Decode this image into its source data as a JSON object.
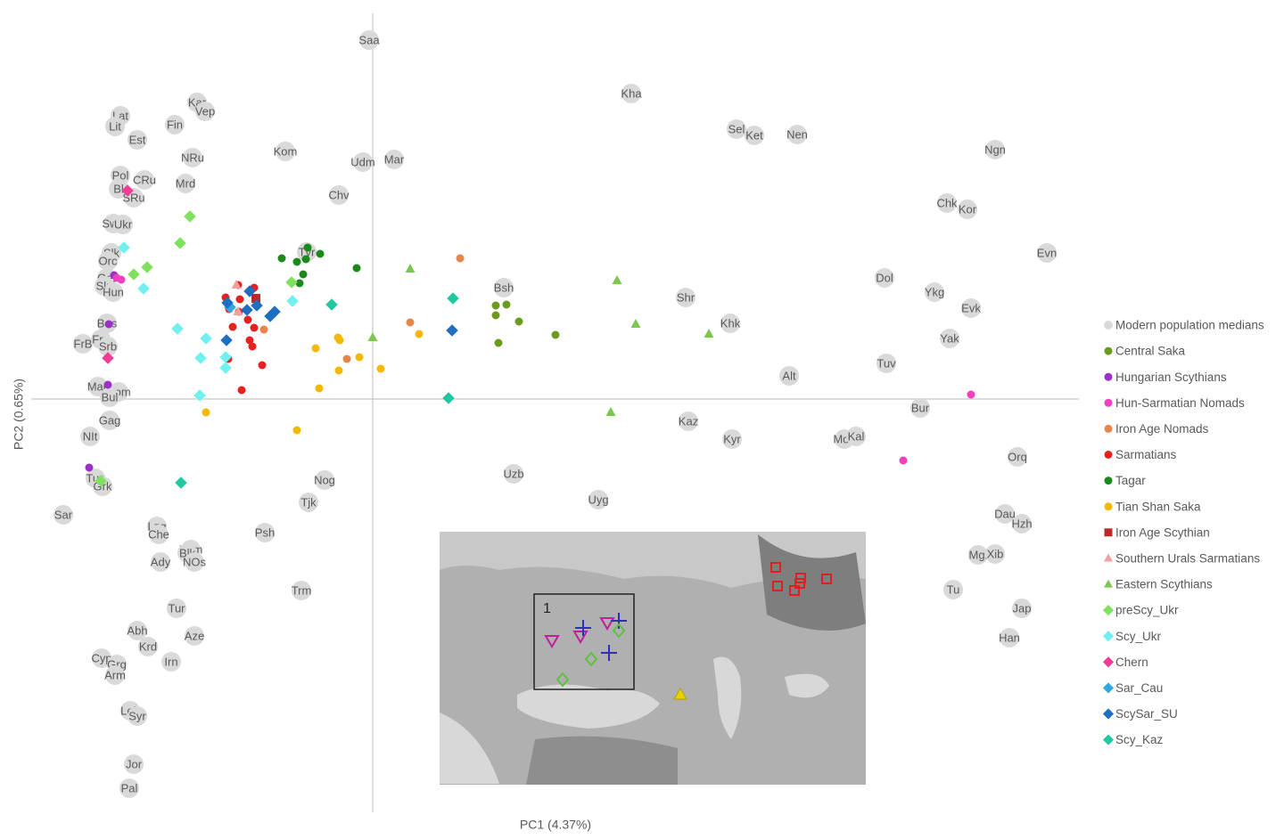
{
  "chart_data": {
    "type": "scatter",
    "x_label": "PC1 (4.37%)",
    "y_label": "PC2 (0.65%)",
    "xlim": [
      -38.3,
      79.2
    ],
    "ylim": [
      -46.4,
      43.3
    ],
    "legend": "right",
    "inset_annotation": "1",
    "series": [
      {
        "name": "Modern population medians",
        "color": "#d9d9d9",
        "marker": "circle",
        "labels": [
          "Saa",
          "Kha",
          "Kar",
          "Vep",
          "Lat",
          "Lit",
          "Fin",
          "Est",
          "Sel",
          "Ket",
          "Nen",
          "Ngn",
          "NRu",
          "Kom",
          "Udm",
          "Mar",
          "Pol",
          "CRu",
          "Bl",
          "SRu",
          "Mrd",
          "Chv",
          "Chk",
          "Kor",
          "Swe",
          "Ukr",
          "Evn",
          "Slk",
          "Orc",
          "Tvr",
          "Ger",
          "Sln",
          "Hun",
          "Bsh",
          "Dol",
          "Ykg",
          "Shr",
          "Evk",
          "Bos",
          "Khk",
          "Fre",
          "FrB",
          "Srb",
          "Yak",
          "Tuv",
          "Alt",
          "Mac",
          "Rom",
          "Bul",
          "Bur",
          "Gag",
          "Kaz",
          "Kyr",
          "NIt",
          "Mon",
          "Kal",
          "Orq",
          "Tus",
          "Grk",
          "Uzb",
          "Nog",
          "Uyg",
          "Tjk",
          "Sar",
          "Dau",
          "Hzh",
          "Lzg",
          "Che",
          "Psh",
          "Kum",
          "Blk",
          "NOs",
          "Ady",
          "Mgl",
          "Xib",
          "Trm",
          "Tu",
          "Tur",
          "Jap",
          "Abh",
          "Aze",
          "Krd",
          "Han",
          "Cyp",
          "Grg",
          "Arm",
          "Irn",
          "Leb",
          "Syr",
          "Jor",
          "Pal"
        ],
        "x": [
          -0.4,
          29.0,
          -19.7,
          -18.8,
          -28.3,
          -28.9,
          -22.2,
          -26.4,
          40.8,
          42.8,
          47.6,
          69.8,
          -20.2,
          -9.8,
          -1.1,
          2.4,
          -28.3,
          -25.6,
          -28.5,
          -26.8,
          -21.0,
          -3.8,
          64.4,
          66.7,
          -29.1,
          -28.0,
          75.6,
          -29.3,
          -29.7,
          -7.4,
          -29.8,
          -30.1,
          -29.1,
          14.7,
          57.4,
          63.0,
          35.1,
          67.1,
          -29.8,
          40.1,
          -30.5,
          -32.5,
          -29.7,
          64.7,
          57.6,
          46.7,
          -30.8,
          -28.5,
          -29.5,
          61.4,
          -29.5,
          35.4,
          40.3,
          -31.7,
          52.9,
          54.2,
          72.3,
          -31.1,
          -30.3,
          15.8,
          -5.4,
          25.3,
          -7.2,
          -34.7,
          70.9,
          72.8,
          -24.2,
          -24.0,
          -12.1,
          -20.4,
          -20.8,
          -20.0,
          -23.8,
          67.9,
          69.8,
          -8.0,
          65.1,
          -22.0,
          72.8,
          -26.4,
          -20.0,
          -25.2,
          71.4,
          -30.4,
          -28.7,
          -28.9,
          -22.6,
          -27.2,
          -26.4,
          -26.8,
          -27.3
        ],
        "values": [
          40.3,
          34.3,
          33.3,
          32.3,
          31.8,
          30.6,
          30.8,
          29.1,
          30.3,
          29.6,
          29.7,
          28.0,
          27.1,
          27.8,
          26.6,
          26.9,
          25.1,
          24.6,
          23.6,
          22.6,
          24.2,
          22.9,
          22.0,
          21.3,
          19.7,
          19.6,
          16.4,
          16.4,
          15.5,
          16.5,
          13.6,
          12.7,
          12.0,
          12.5,
          13.6,
          12.0,
          11.4,
          10.2,
          8.5,
          8.5,
          6.7,
          6.2,
          5.9,
          6.8,
          4.0,
          2.6,
          1.4,
          0.8,
          0.2,
          -1.0,
          -2.4,
          -2.5,
          -4.5,
          -4.2,
          -4.5,
          -4.2,
          -6.5,
          -8.9,
          -9.8,
          -8.4,
          -9.1,
          -11.3,
          -11.6,
          -13.0,
          -12.9,
          -14.0,
          -14.3,
          -15.2,
          -15.0,
          -16.9,
          -17.3,
          -18.3,
          -18.3,
          -17.5,
          -17.4,
          -21.5,
          -21.4,
          -23.5,
          -23.5,
          -26.0,
          -26.6,
          -27.8,
          -26.8,
          -29.1,
          -29.8,
          -31.0,
          -29.5,
          -35.0,
          -35.6,
          -41.0,
          -43.7
        ]
      },
      {
        "name": "Central Saka",
        "color": "#6a9a1e",
        "marker": "circle",
        "x": [
          13.8,
          15.0,
          13.8,
          16.4,
          14.1,
          20.5
        ],
        "values": [
          10.5,
          10.6,
          9.4,
          8.7,
          6.3,
          7.2
        ]
      },
      {
        "name": "Hungarian Scythians",
        "color": "#9b30c8",
        "marker": "circle",
        "x": [
          -29.0,
          -29.6,
          -29.7,
          -31.8
        ],
        "values": [
          13.9,
          8.4,
          1.6,
          -7.7
        ]
      },
      {
        "name": "Hun-Sarmatian Nomads",
        "color": "#f040c0",
        "marker": "circle",
        "x": [
          67.1,
          59.5,
          -28.7,
          -28.2
        ],
        "values": [
          0.5,
          -6.9,
          13.6,
          13.4
        ]
      },
      {
        "name": "Iron Age Nomads",
        "color": "#e8844a",
        "marker": "circle",
        "x": [
          9.8,
          4.2,
          -12.2,
          -2.9
        ],
        "values": [
          15.8,
          8.6,
          7.8,
          4.5
        ]
      },
      {
        "name": "Sarmatians",
        "color": "#e82020",
        "marker": "circle",
        "x": [
          -15.1,
          -13.3,
          -16.5,
          -14.9,
          -16.1,
          -15.0,
          -14.0,
          -15.7,
          -13.3,
          -13.8,
          -13.5,
          -16.2,
          -12.4,
          -14.7
        ],
        "values": [
          12.8,
          12.5,
          11.4,
          11.2,
          10.1,
          9.8,
          8.9,
          8.1,
          8.0,
          6.6,
          5.9,
          4.5,
          3.8,
          1.0
        ]
      },
      {
        "name": "Tagar",
        "color": "#1a8a1a",
        "marker": "circle",
        "x": [
          -10.2,
          -8.5,
          -7.3,
          -7.5,
          -5.9,
          -7.8,
          -8.2,
          -1.8
        ],
        "values": [
          15.8,
          15.4,
          17.0,
          15.7,
          16.3,
          14.0,
          13.0,
          14.7
        ]
      },
      {
        "name": "Tian Shan Saka",
        "color": "#f5b800",
        "marker": "circle",
        "x": [
          -3.9,
          -3.7,
          -6.4,
          0.9,
          -3.8,
          -6.0,
          -18.7,
          -8.5,
          5.2,
          -1.5
        ],
        "values": [
          6.9,
          6.6,
          5.7,
          3.4,
          3.2,
          1.2,
          -1.5,
          -3.5,
          7.3,
          4.7
        ]
      },
      {
        "name": "Iron Age Scythian",
        "color": "#c02828",
        "marker": "square",
        "x": [
          -13.1
        ],
        "values": [
          11.3
        ]
      },
      {
        "name": "Southern Urals Sarmatians",
        "color": "#f0a0a0",
        "marker": "triangle",
        "x": [
          -15.3,
          -15.1
        ],
        "values": [
          12.8,
          9.8
        ]
      },
      {
        "name": "Eastern Scythians",
        "color": "#7ac850",
        "marker": "triangle",
        "x": [
          4.2,
          27.4,
          29.5,
          37.7,
          0.0,
          26.7
        ],
        "values": [
          14.6,
          13.3,
          8.4,
          7.3,
          6.9,
          -1.5
        ]
      },
      {
        "name": "preScy_Ukr",
        "color": "#80e060",
        "marker": "diamond",
        "x": [
          -20.5,
          -21.6,
          -25.3,
          -26.8,
          -9.1,
          -30.5
        ],
        "values": [
          20.5,
          17.5,
          14.8,
          14.0,
          13.1,
          -9.2
        ]
      },
      {
        "name": "Scy_Ukr",
        "color": "#70f0f0",
        "marker": "diamond",
        "x": [
          -27.9,
          -25.7,
          -21.9,
          -18.7,
          -19.3,
          -16.5,
          -16.5,
          -19.4,
          -9.0
        ],
        "values": [
          17.0,
          12.4,
          7.9,
          6.8,
          4.6,
          4.7,
          3.5,
          0.4,
          11.0
        ]
      },
      {
        "name": "Chern",
        "color": "#f03c96",
        "marker": "diamond",
        "x": [
          -27.5,
          -29.7
        ],
        "values": [
          23.4,
          4.6
        ]
      },
      {
        "name": "Sar_Cau",
        "color": "#30a8e0",
        "marker": "diamond",
        "x": [
          -16.0
        ],
        "values": [
          10.3
        ]
      },
      {
        "name": "ScySar_SU",
        "color": "#1f6fc0",
        "marker": "diamond",
        "x": [
          -13.8,
          -16.3,
          -13.0,
          -14.1,
          -11.5,
          -11.0,
          -16.4,
          8.9
        ],
        "values": [
          12.1,
          10.8,
          10.5,
          10.0,
          9.3,
          9.8,
          6.6,
          7.7
        ]
      },
      {
        "name": "Scy_Kaz",
        "color": "#20c8a0",
        "marker": "diamond",
        "x": [
          -4.6,
          9.0,
          8.5,
          -21.5
        ],
        "values": [
          10.6,
          11.3,
          0.1,
          -9.4
        ]
      }
    ]
  }
}
